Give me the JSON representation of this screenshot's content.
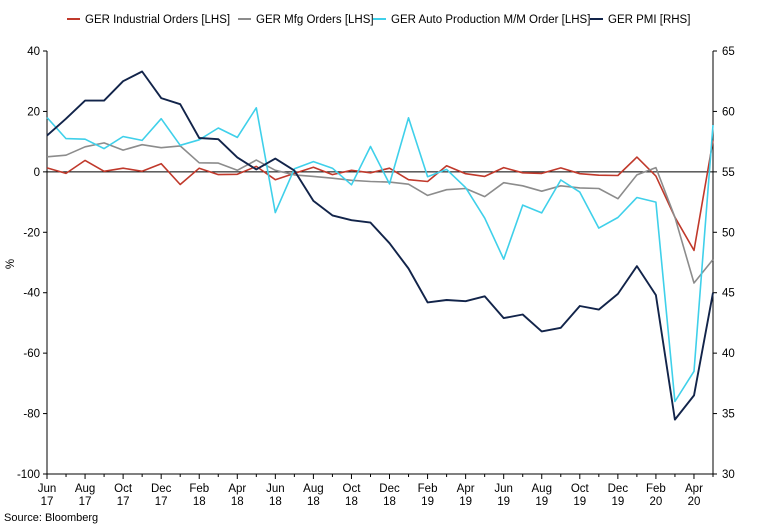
{
  "chart_data": {
    "type": "line",
    "title": "",
    "source": "Source: Bloomberg",
    "ylabel": "%",
    "ylim_left": [
      -100,
      40
    ],
    "yticks_left": [
      "40",
      "20",
      "0",
      "-20",
      "-40",
      "-60",
      "-80",
      "-100"
    ],
    "ylim_right": [
      30,
      65
    ],
    "yticks_right": [
      "65",
      "60",
      "55",
      "50",
      "45",
      "40",
      "35",
      "30"
    ],
    "xtick_labels": [
      {
        "month": "Jun",
        "year": "17"
      },
      {
        "month": "Aug",
        "year": "17"
      },
      {
        "month": "Oct",
        "year": "17"
      },
      {
        "month": "Dec",
        "year": "17"
      },
      {
        "month": "Feb",
        "year": "18"
      },
      {
        "month": "Apr",
        "year": "18"
      },
      {
        "month": "Jun",
        "year": "18"
      },
      {
        "month": "Aug",
        "year": "18"
      },
      {
        "month": "Oct",
        "year": "18"
      },
      {
        "month": "Dec",
        "year": "18"
      },
      {
        "month": "Feb",
        "year": "19"
      },
      {
        "month": "Apr",
        "year": "19"
      },
      {
        "month": "Jun",
        "year": "19"
      },
      {
        "month": "Aug",
        "year": "19"
      },
      {
        "month": "Oct",
        "year": "19"
      },
      {
        "month": "Dec",
        "year": "19"
      },
      {
        "month": "Feb",
        "year": "20"
      },
      {
        "month": "Apr",
        "year": "20"
      }
    ],
    "months": [
      "Jun 17",
      "Jul 17",
      "Aug 17",
      "Sep 17",
      "Oct 17",
      "Nov 17",
      "Dec 17",
      "Jan 18",
      "Feb 18",
      "Mar 18",
      "Apr 18",
      "May 18",
      "Jun 18",
      "Jul 18",
      "Aug 18",
      "Sep 18",
      "Oct 18",
      "Nov 18",
      "Dec 18",
      "Jan 19",
      "Feb 19",
      "Mar 19",
      "Apr 19",
      "May 19",
      "Jun 19",
      "Jul 19",
      "Aug 19",
      "Sep 19",
      "Oct 19",
      "Nov 19",
      "Dec 19",
      "Jan 20",
      "Feb 20",
      "Mar 20",
      "Apr 20",
      "May 20"
    ],
    "series": [
      {
        "name": "GER Industrial Orders [LHS]",
        "axis": "left",
        "color": "#c0392b",
        "values": [
          1.3,
          -0.5,
          3.8,
          0.2,
          1.2,
          0.2,
          2.7,
          -4.2,
          1.2,
          -0.9,
          -0.8,
          1.8,
          -2.6,
          -0.5,
          1.5,
          -0.9,
          0.5,
          -0.3,
          1.2,
          -2.6,
          -3.2,
          2.0,
          -0.6,
          -1.5,
          1.4,
          -0.3,
          -0.5,
          1.3,
          -0.6,
          -1.1,
          -1.2,
          4.9,
          -1.4,
          -15.0,
          -26.0,
          10.4
        ]
      },
      {
        "name": "GER Mfg Orders [LHS]",
        "axis": "left",
        "color": "#8c8c8c",
        "values": [
          5.0,
          5.5,
          8.3,
          9.6,
          7.2,
          9.0,
          8.0,
          8.6,
          3.0,
          2.9,
          0.5,
          3.9,
          0.5,
          -1.0,
          -1.5,
          -2.1,
          -2.8,
          -3.2,
          -3.4,
          -4.1,
          -7.8,
          -5.9,
          -5.5,
          -8.2,
          -3.6,
          -4.6,
          -6.4,
          -4.6,
          -5.3,
          -5.5,
          -8.9,
          -1.0,
          1.4,
          -15.0,
          -36.8,
          -29.0
        ]
      },
      {
        "name": "GER Auto Production M/M Order [LHS]",
        "axis": "left",
        "color": "#3fd0ea",
        "values": [
          18.0,
          11.0,
          10.8,
          7.7,
          11.7,
          10.4,
          17.6,
          8.8,
          10.6,
          14.5,
          11.4,
          21.2,
          -13.5,
          1.0,
          3.4,
          1.2,
          -4.3,
          8.4,
          -4.0,
          17.9,
          -1.6,
          0.8,
          -5.2,
          -15.3,
          -28.9,
          -11.0,
          -13.6,
          -2.7,
          -6.7,
          -18.6,
          -15.1,
          -8.5,
          -10.0,
          -76.0,
          -66.0,
          15.5
        ]
      },
      {
        "name": "GER PMI [RHS]",
        "axis": "right",
        "color": "#12244a",
        "values": [
          58.0,
          59.4,
          60.9,
          60.9,
          62.5,
          63.3,
          61.1,
          60.6,
          57.8,
          57.7,
          56.2,
          55.2,
          56.1,
          55.1,
          52.6,
          51.4,
          51.0,
          50.8,
          49.1,
          47.0,
          44.2,
          44.4,
          44.3,
          44.7,
          42.9,
          43.2,
          41.8,
          42.1,
          43.9,
          43.6,
          44.9,
          47.2,
          44.8,
          34.5,
          36.5,
          45.0
        ]
      }
    ]
  }
}
